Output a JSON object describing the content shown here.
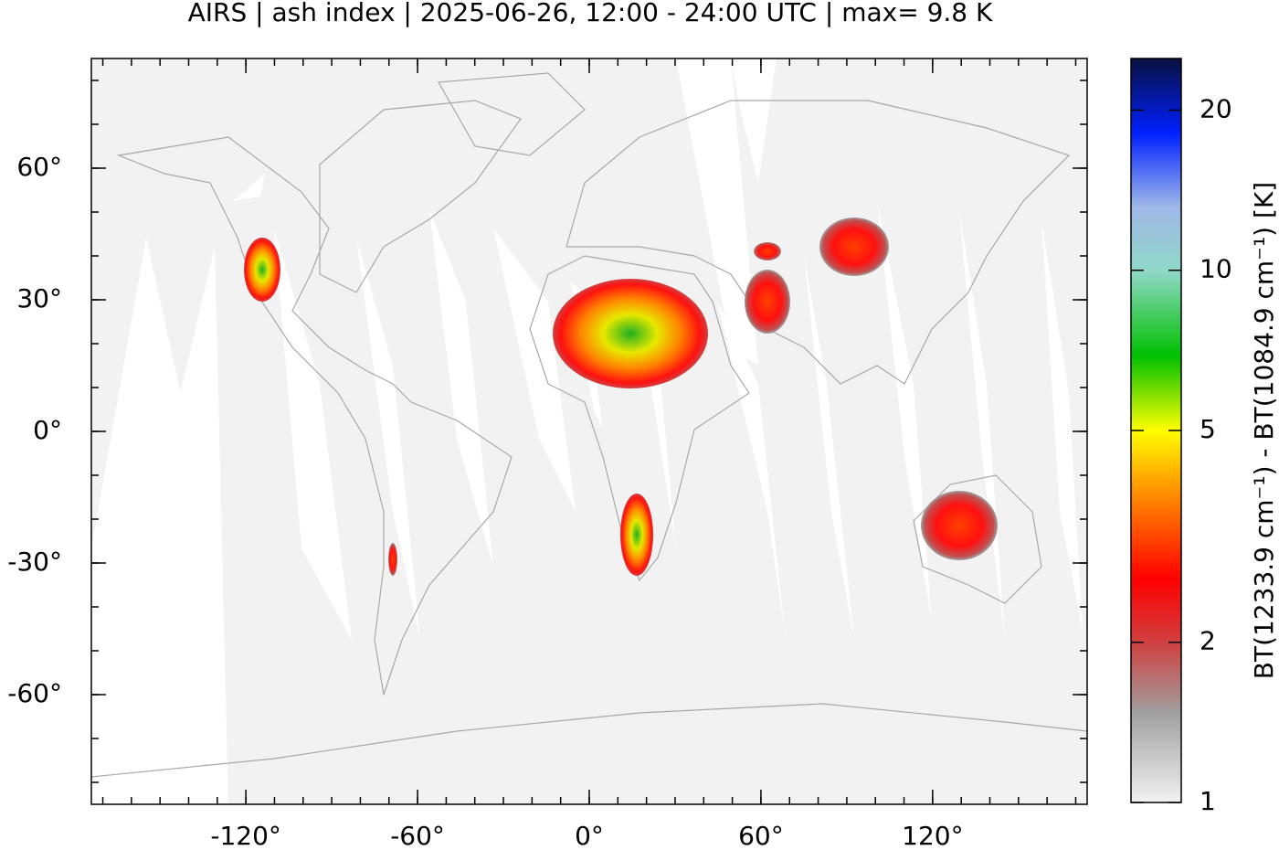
{
  "chart_data": {
    "type": "map",
    "title": "AIRS | ash index | 2025-06-26, 12:00 - 24:00 UTC | max= 9.8 K",
    "xlim": [
      -174,
      174
    ],
    "ylim": [
      -85,
      85
    ],
    "xticks": [
      {
        "value": -120,
        "label": "-120°"
      },
      {
        "value": -60,
        "label": "-60°"
      },
      {
        "value": 0,
        "label": "0°"
      },
      {
        "value": 60,
        "label": "60°"
      },
      {
        "value": 120,
        "label": "120°"
      }
    ],
    "yticks": [
      {
        "value": 60,
        "label": "60°"
      },
      {
        "value": 30,
        "label": "30°"
      },
      {
        "value": 0,
        "label": "0°"
      },
      {
        "value": -30,
        "label": "-30°"
      },
      {
        "value": -60,
        "label": "-60°"
      }
    ],
    "colorbar": {
      "label": "BT(1233.9 cm⁻¹) - BT(1084.9 cm⁻¹) [K]",
      "lim": [
        1,
        25
      ],
      "ticks": [
        1,
        2,
        5,
        10,
        20
      ],
      "scale": "log"
    }
  }
}
